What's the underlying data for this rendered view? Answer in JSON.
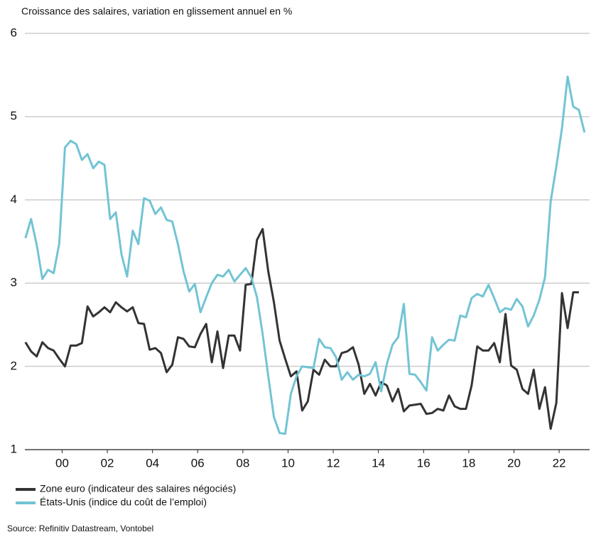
{
  "chart_data": {
    "type": "line",
    "title": "Croissance des salaires, variation en glissement annuel en %",
    "source": "Source: Refinitiv Datastream, Vontobel",
    "x": [
      1998.375,
      1998.625,
      1998.875,
      1999.125,
      1999.375,
      1999.625,
      1999.875,
      2000.125,
      2000.375,
      2000.625,
      2000.875,
      2001.125,
      2001.375,
      2001.625,
      2001.875,
      2002.125,
      2002.375,
      2002.625,
      2002.875,
      2003.125,
      2003.375,
      2003.625,
      2003.875,
      2004.125,
      2004.375,
      2004.625,
      2004.875,
      2005.125,
      2005.375,
      2005.625,
      2005.875,
      2006.125,
      2006.375,
      2006.625,
      2006.875,
      2007.125,
      2007.375,
      2007.625,
      2007.875,
      2008.125,
      2008.375,
      2008.625,
      2008.875,
      2009.125,
      2009.375,
      2009.625,
      2009.875,
      2010.125,
      2010.375,
      2010.625,
      2010.875,
      2011.125,
      2011.375,
      2011.625,
      2011.875,
      2012.125,
      2012.375,
      2012.625,
      2012.875,
      2013.125,
      2013.375,
      2013.625,
      2013.875,
      2014.125,
      2014.375,
      2014.625,
      2014.875,
      2015.125,
      2015.375,
      2015.625,
      2015.875,
      2016.125,
      2016.375,
      2016.625,
      2016.875,
      2017.125,
      2017.375,
      2017.625,
      2017.875,
      2018.125,
      2018.375,
      2018.625,
      2018.875,
      2019.125,
      2019.375,
      2019.625,
      2019.875,
      2020.125,
      2020.375,
      2020.625,
      2020.875,
      2021.125,
      2021.375,
      2021.625,
      2021.875,
      2022.125,
      2022.375,
      2022.625,
      2022.875,
      2023.125
    ],
    "series": [
      {
        "name": "Zone euro (indicateur des salaires négociés)",
        "color": "#333333",
        "values": [
          2.29,
          2.18,
          2.12,
          2.29,
          2.22,
          2.19,
          2.09,
          2.0,
          2.25,
          2.25,
          2.28,
          2.72,
          2.6,
          2.65,
          2.71,
          2.65,
          2.77,
          2.71,
          2.66,
          2.71,
          2.52,
          2.51,
          2.2,
          2.22,
          2.16,
          1.93,
          2.02,
          2.35,
          2.33,
          2.24,
          2.23,
          2.39,
          2.51,
          2.05,
          2.42,
          1.98,
          2.37,
          2.37,
          2.19,
          2.98,
          2.99,
          3.52,
          3.65,
          3.14,
          2.77,
          2.31,
          2.09,
          1.88,
          1.94,
          1.47,
          1.58,
          1.96,
          1.9,
          2.08,
          2.0,
          2.0,
          2.16,
          2.18,
          2.23,
          2.02,
          1.67,
          1.79,
          1.65,
          1.81,
          1.77,
          1.58,
          1.73,
          1.46,
          1.53,
          1.54,
          1.55,
          1.43,
          1.44,
          1.49,
          1.47,
          1.65,
          1.52,
          1.49,
          1.49,
          1.77,
          2.24,
          2.19,
          2.19,
          2.28,
          2.05,
          2.63,
          2.01,
          1.96,
          1.73,
          1.67,
          1.96,
          1.49,
          1.75,
          1.25,
          1.56,
          2.88,
          2.46,
          2.89,
          2.89,
          null
        ]
      },
      {
        "name": "États-Unis (indice du coût de l’emploi)",
        "color": "#72c4d4",
        "values": [
          3.54,
          3.77,
          3.46,
          3.05,
          3.16,
          3.12,
          3.48,
          4.63,
          4.71,
          4.67,
          4.48,
          4.55,
          4.38,
          4.46,
          4.42,
          3.77,
          3.85,
          3.35,
          3.08,
          3.63,
          3.47,
          4.02,
          3.99,
          3.83,
          3.91,
          3.76,
          3.74,
          3.47,
          3.14,
          2.9,
          2.99,
          2.65,
          2.83,
          3.0,
          3.1,
          3.08,
          3.16,
          3.02,
          3.1,
          3.18,
          3.07,
          2.83,
          2.39,
          1.88,
          1.39,
          1.2,
          1.19,
          1.67,
          1.88,
          2.0,
          1.99,
          1.98,
          2.33,
          2.23,
          2.22,
          2.11,
          1.84,
          1.93,
          1.84,
          1.9,
          1.88,
          1.91,
          2.05,
          1.7,
          2.03,
          2.26,
          2.35,
          2.75,
          1.91,
          1.9,
          1.81,
          1.71,
          2.35,
          2.19,
          2.26,
          2.32,
          2.31,
          2.61,
          2.59,
          2.82,
          2.87,
          2.84,
          2.98,
          2.82,
          2.65,
          2.7,
          2.68,
          2.81,
          2.72,
          2.48,
          2.61,
          2.8,
          3.07,
          3.98,
          4.4,
          4.86,
          5.48,
          5.12,
          5.08,
          4.81
        ]
      }
    ],
    "xlim": [
      1998.35,
      2023.35
    ],
    "xticks": [
      {
        "value": 2000,
        "label": "00"
      },
      {
        "value": 2002,
        "label": "02"
      },
      {
        "value": 2004,
        "label": "04"
      },
      {
        "value": 2006,
        "label": "06"
      },
      {
        "value": 2008,
        "label": "08"
      },
      {
        "value": 2010,
        "label": "10"
      },
      {
        "value": 2012,
        "label": "12"
      },
      {
        "value": 2014,
        "label": "14"
      },
      {
        "value": 2016,
        "label": "16"
      },
      {
        "value": 2018,
        "label": "18"
      },
      {
        "value": 2020,
        "label": "20"
      },
      {
        "value": 2022,
        "label": "22"
      }
    ],
    "ylim": [
      1,
      6
    ],
    "yticks": [
      1,
      2,
      3,
      4,
      5,
      6
    ],
    "grid": true
  }
}
